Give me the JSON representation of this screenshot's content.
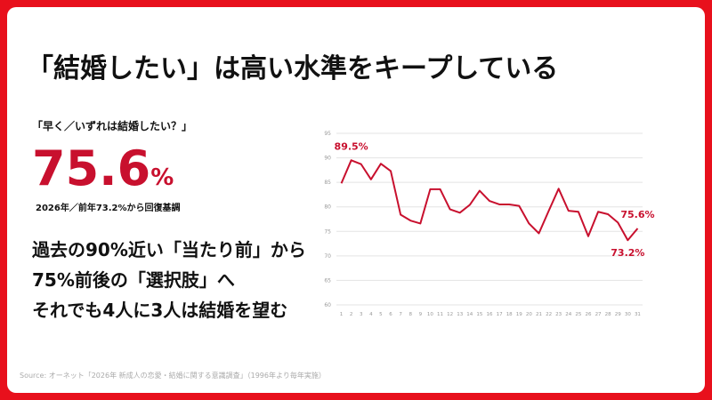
{
  "title": "「結婚したい」は高い水準をキープしている",
  "question": "「早く／いずれは結婚したい？」",
  "headline": {
    "value": "75.6",
    "unit": "%"
  },
  "headline_note": "2026年／前年73.2%から回復基調",
  "body": [
    "過去の90%近い「当たり前」から",
    "75%前後の「選択肢」へ",
    "それでも4人に3人は結婚を望む"
  ],
  "source": "Source: オーネット「2026年 新成人の恋愛・結婚に関する意識調査」（1996年より毎年実施）",
  "chart_data": {
    "type": "line",
    "color": "#c8102e",
    "categories": [
      "1",
      "2",
      "3",
      "4",
      "5",
      "6",
      "7",
      "8",
      "9",
      "10",
      "11",
      "12",
      "13",
      "14",
      "15",
      "16",
      "17",
      "18",
      "19",
      "20",
      "21",
      "22",
      "23",
      "24",
      "25",
      "26",
      "27",
      "28",
      "29",
      "30",
      "31"
    ],
    "values": [
      84.8,
      89.5,
      88.7,
      85.6,
      88.8,
      87.3,
      78.4,
      77.2,
      76.6,
      83.6,
      83.6,
      79.5,
      78.8,
      80.4,
      83.3,
      81.2,
      80.5,
      80.5,
      80.2,
      76.6,
      74.6,
      79.2,
      83.7,
      79.2,
      79.0,
      74.0,
      79.0,
      78.5,
      76.8,
      73.2,
      75.6
    ],
    "value_labels": [
      null,
      "89.5%",
      null,
      null,
      null,
      null,
      null,
      null,
      null,
      null,
      null,
      null,
      null,
      null,
      null,
      null,
      null,
      null,
      null,
      null,
      null,
      null,
      null,
      null,
      null,
      null,
      null,
      null,
      null,
      "73.2%",
      "75.6%"
    ],
    "ylim": [
      60,
      95
    ],
    "yticks": [
      60,
      65,
      70,
      75,
      80,
      85,
      90,
      95
    ],
    "grid": true
  }
}
